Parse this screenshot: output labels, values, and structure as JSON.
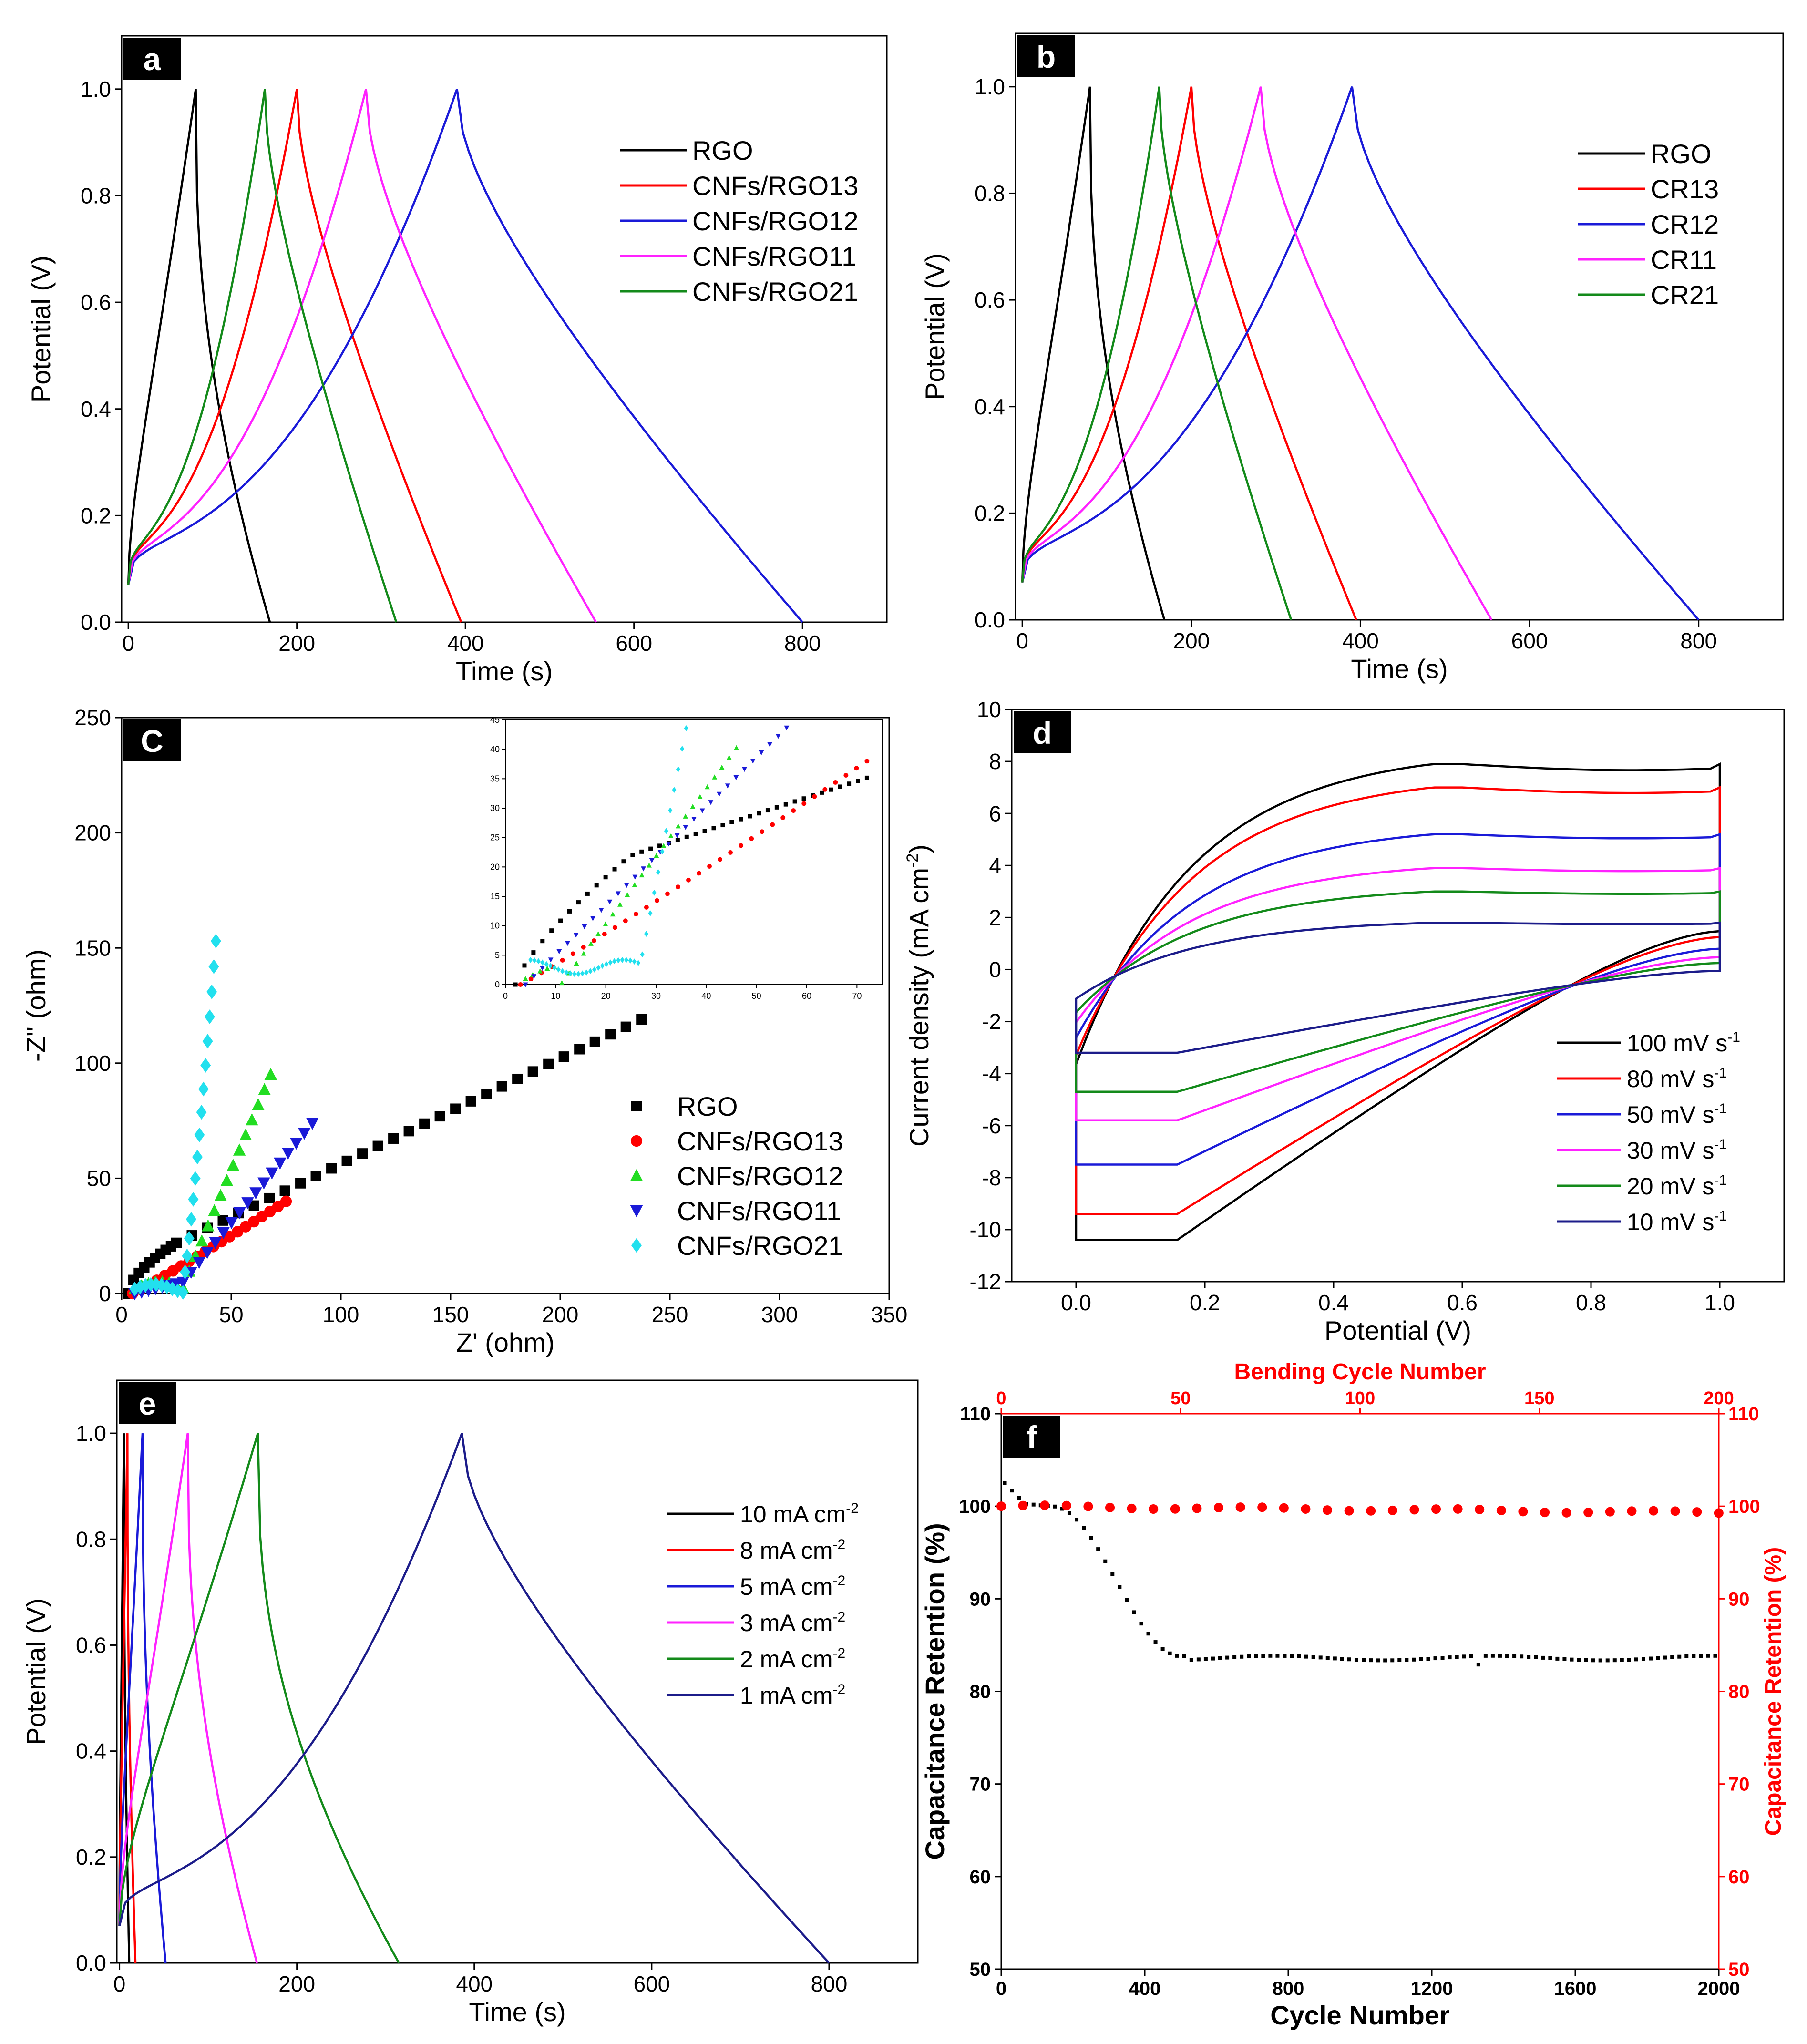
{
  "colors": {
    "black": "#000000",
    "red": "#ff0000",
    "blue": "#1a1ad8",
    "magenta": "#ff22ff",
    "green": "#138a1a",
    "cyan": "#22e0ee",
    "brightgreen": "#22dd22",
    "navy": "#1c1c8a"
  },
  "chart_data": [
    {
      "id": "a",
      "panel_label": "a",
      "type": "line",
      "xlabel": "Time (s)",
      "ylabel": "Potential (V)",
      "xlim": [
        -8,
        900
      ],
      "ylim": [
        0,
        1.1
      ],
      "xticks": [
        0,
        200,
        400,
        600,
        800
      ],
      "yticks": [
        0.0,
        0.2,
        0.4,
        0.6,
        0.8,
        1.0
      ],
      "tick_labels_y": [
        "0.0",
        "0.2",
        "0.4",
        "0.6",
        "0.8",
        "1.0"
      ],
      "legend": "top-right",
      "series": [
        {
          "name": "RGO",
          "color": "black",
          "peak_x": 80,
          "end_x": 168
        },
        {
          "name": "CNFs/RGO13",
          "color": "red",
          "peak_x": 200,
          "end_x": 395
        },
        {
          "name": "CNFs/RGO12",
          "color": "blue",
          "peak_x": 390,
          "end_x": 800
        },
        {
          "name": "CNFs/RGO11",
          "color": "magenta",
          "peak_x": 282,
          "end_x": 555
        },
        {
          "name": "CNFs/RGO21",
          "color": "green",
          "peak_x": 162,
          "end_x": 318
        }
      ]
    },
    {
      "id": "b",
      "panel_label": "b",
      "type": "line",
      "xlabel": "Time (s)",
      "ylabel": "Potential (V)",
      "xlim": [
        -8,
        900
      ],
      "ylim": [
        0,
        1.1
      ],
      "xticks": [
        0,
        200,
        400,
        600,
        800
      ],
      "yticks": [
        0.0,
        0.2,
        0.4,
        0.6,
        0.8,
        1.0
      ],
      "tick_labels_y": [
        "0.0",
        "0.2",
        "0.4",
        "0.6",
        "0.8",
        "1.0"
      ],
      "legend": "top-right",
      "series": [
        {
          "name": "RGO",
          "color": "black",
          "peak_x": 80,
          "end_x": 168
        },
        {
          "name": "CR13",
          "color": "red",
          "peak_x": 200,
          "end_x": 395
        },
        {
          "name": "CR12",
          "color": "blue",
          "peak_x": 390,
          "end_x": 800
        },
        {
          "name": "CR11",
          "color": "magenta",
          "peak_x": 282,
          "end_x": 555
        },
        {
          "name": "CR21",
          "color": "green",
          "peak_x": 162,
          "end_x": 318
        }
      ]
    },
    {
      "id": "c",
      "panel_label": "C",
      "type": "scatter",
      "xlabel": "Z' (ohm)",
      "ylabel": "-Z'' (ohm)",
      "xlim": [
        0,
        350
      ],
      "ylim": [
        0,
        250
      ],
      "xticks": [
        0,
        50,
        100,
        150,
        200,
        250,
        300,
        350
      ],
      "yticks": [
        0,
        50,
        100,
        150,
        200,
        250
      ],
      "legend": "bottom-right",
      "series": [
        {
          "name": "RGO",
          "color": "black",
          "marker": "square",
          "end": [
            237,
            119
          ]
        },
        {
          "name": "CNFs/RGO13",
          "color": "red",
          "marker": "circle",
          "end": [
            75,
            40
          ]
        },
        {
          "name": "CNFs/RGO12",
          "color": "brightgreen",
          "marker": "triangle-up",
          "end": [
            68,
            95
          ]
        },
        {
          "name": "CNFs/RGO11",
          "color": "blue",
          "marker": "triangle-down",
          "end": [
            87,
            74
          ]
        },
        {
          "name": "CNFs/RGO21",
          "color": "cyan",
          "marker": "diamond",
          "end": [
            43,
            153
          ]
        }
      ],
      "inset": {
        "xlim": [
          0,
          75
        ],
        "ylim": [
          0,
          45
        ],
        "xticks": [
          0,
          10,
          20,
          30,
          40,
          50,
          60,
          70
        ],
        "yticks": [
          0,
          5,
          10,
          15,
          20,
          25,
          30,
          35,
          40,
          45
        ]
      }
    },
    {
      "id": "d",
      "panel_label": "d",
      "type": "line",
      "xlabel": "Potential (V)",
      "ylabel": "Current density (mA cm-2)",
      "xlim": [
        -0.1,
        1.1
      ],
      "ylim": [
        -12,
        10
      ],
      "xticks": [
        0.0,
        0.2,
        0.4,
        0.6,
        0.8,
        1.0
      ],
      "yticks": [
        -12,
        -10,
        -8,
        -6,
        -4,
        -2,
        0,
        2,
        4,
        6,
        8,
        10
      ],
      "tick_labels_x": [
        "0.0",
        "0.2",
        "0.4",
        "0.6",
        "0.8",
        "1.0"
      ],
      "legend": "bottom-right",
      "series": [
        {
          "name": "100 mV s",
          "sup": "-1",
          "color": "black",
          "imax": 7.9,
          "imin": -10.4
        },
        {
          "name": "80 mV s",
          "sup": "-1",
          "color": "red",
          "imax": 7.0,
          "imin": -9.4
        },
        {
          "name": "50 mV s",
          "sup": "-1",
          "color": "blue",
          "imax": 5.2,
          "imin": -7.5
        },
        {
          "name": "30 mV s",
          "sup": "-1",
          "color": "magenta",
          "imax": 3.9,
          "imin": -5.8
        },
        {
          "name": "20 mV s",
          "sup": "-1",
          "color": "green",
          "imax": 3.0,
          "imin": -4.7
        },
        {
          "name": "10 mV s",
          "sup": "-1",
          "color": "navy",
          "imax": 1.8,
          "imin": -3.2
        }
      ]
    },
    {
      "id": "e",
      "panel_label": "e",
      "type": "line",
      "xlabel": "Time (s)",
      "ylabel": "Potential (V)",
      "xlim": [
        -3,
        900
      ],
      "ylim": [
        0,
        1.1
      ],
      "xticks": [
        0,
        200,
        400,
        600,
        800
      ],
      "yticks": [
        0.0,
        0.2,
        0.4,
        0.6,
        0.8,
        1.0
      ],
      "tick_labels_y": [
        "0.0",
        "0.2",
        "0.4",
        "0.6",
        "0.8",
        "1.0"
      ],
      "legend": "top-right",
      "series": [
        {
          "name": "10 mA cm",
          "sup": "-2",
          "color": "black",
          "peak_x": 5,
          "end_x": 11
        },
        {
          "name": "8 mA cm",
          "sup": "-2",
          "color": "red",
          "peak_x": 9,
          "end_x": 18
        },
        {
          "name": "5 mA cm",
          "sup": "-2",
          "color": "blue",
          "peak_x": 26,
          "end_x": 52
        },
        {
          "name": "3 mA cm",
          "sup": "-2",
          "color": "magenta",
          "peak_x": 77,
          "end_x": 155
        },
        {
          "name": "2 mA cm",
          "sup": "-2",
          "color": "green",
          "peak_x": 156,
          "end_x": 315
        },
        {
          "name": "1 mA cm",
          "sup": "-2",
          "color": "navy",
          "peak_x": 386,
          "end_x": 800
        }
      ]
    },
    {
      "id": "f",
      "panel_label": "f",
      "type": "scatter",
      "xlabel": "Cycle Number",
      "ylabel": "Capacitance Retention (%)",
      "x2label": "Bending Cycle Number",
      "y2label": "Capacitance Retention (%)",
      "xlim": [
        0,
        2000
      ],
      "ylim": [
        50,
        110
      ],
      "x2lim": [
        0,
        200
      ],
      "y2lim": [
        50,
        110
      ],
      "xticks": [
        0,
        400,
        800,
        1200,
        1600,
        2000
      ],
      "x2ticks": [
        0,
        50,
        100,
        150,
        200
      ],
      "yticks": [
        50,
        60,
        70,
        80,
        90,
        100,
        110
      ],
      "series": [
        {
          "name": "Cycle Number",
          "color": "black",
          "plateau": 83.6,
          "start": 102.5
        },
        {
          "name": "Bending Cycle Number",
          "color": "red",
          "start": 100.0,
          "end": 99.3
        }
      ]
    }
  ]
}
